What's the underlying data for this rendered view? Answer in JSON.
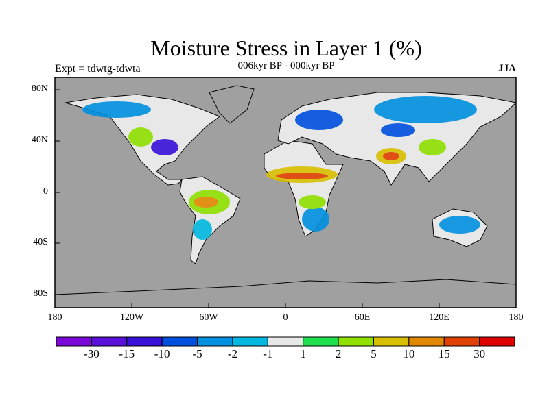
{
  "title": "Moisture Stress in Layer 1 (%)",
  "subtitle": "006kyr BP - 000kyr BP",
  "experiment": "Expt = tdwtg-tdwta",
  "season": "JJA",
  "lat_ticks": [
    "80N",
    "40N",
    "0",
    "40S",
    "80S"
  ],
  "lon_ticks": [
    "180",
    "120W",
    "60W",
    "0",
    "60E",
    "120E",
    "180"
  ],
  "colorbar": {
    "labels": [
      "-30",
      "-15",
      "-10",
      "-5",
      "-2",
      "-1",
      "1",
      "2",
      "5",
      "10",
      "15",
      "30"
    ],
    "colors": [
      "#7a08d8",
      "#5a10d8",
      "#3810d8",
      "#0050e0",
      "#0090e0",
      "#00b8e0",
      "#e8e8e8",
      "#20e050",
      "#90e000",
      "#d8c000",
      "#e08800",
      "#e04000",
      "#e00000"
    ]
  },
  "ocean_color": "#a0a0a0"
}
